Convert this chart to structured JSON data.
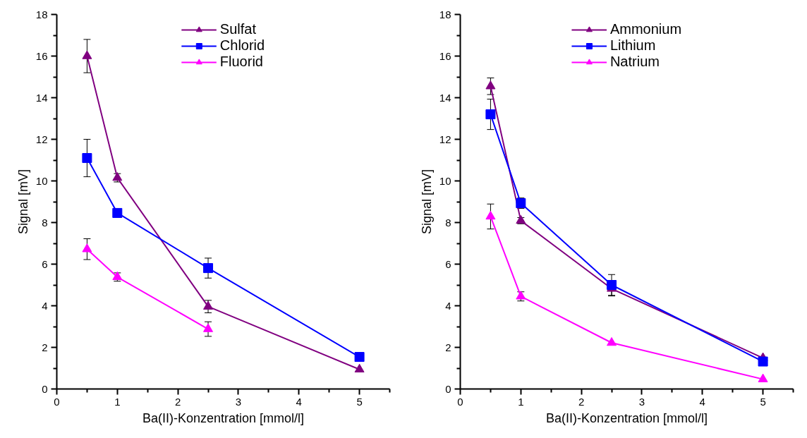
{
  "chart_data": [
    {
      "type": "line",
      "xlabel": "Ba(II)-Konzentration [mmol/l]",
      "ylabel": "Signal [mV]",
      "xlim": [
        0,
        5.5
      ],
      "ylim": [
        0,
        18
      ],
      "xticks": [
        0,
        {
          "value": 0.5,
          "label": null
        },
        1,
        {
          "value": 1.5,
          "label": null
        },
        2,
        {
          "value": 2.5,
          "label": null
        },
        3,
        {
          "value": 3.5,
          "label": null
        },
        4,
        {
          "value": 4.5,
          "label": null
        },
        5,
        {
          "value": 5.5,
          "label": null
        }
      ],
      "yticks": [
        0,
        {
          "value": 1,
          "label": null
        },
        2,
        {
          "value": 3,
          "label": null
        },
        4,
        {
          "value": 5,
          "label": null
        },
        6,
        {
          "value": 7,
          "label": null
        },
        8,
        {
          "value": 9,
          "label": null
        },
        10,
        {
          "value": 11,
          "label": null
        },
        12,
        {
          "value": 13,
          "label": null
        },
        14,
        {
          "value": 15,
          "label": null
        },
        16,
        {
          "value": 17,
          "label": null
        },
        18
      ],
      "grid": false,
      "legend": "top",
      "line_style": "solid",
      "series": [
        {
          "name": "Sulfat",
          "color": "#800080",
          "marker": "triangle",
          "x": [
            0.5,
            1,
            2.5,
            5
          ],
          "values": [
            16.0,
            10.15,
            3.96,
            0.94
          ],
          "errors": [
            0.8,
            0.2,
            0.3,
            null
          ]
        },
        {
          "name": "Chlorid",
          "color": "#0000ff",
          "marker": "square",
          "x": [
            0.5,
            1,
            2.5,
            5
          ],
          "values": [
            11.1,
            8.46,
            5.81,
            1.54
          ],
          "errors": [
            0.9,
            null,
            0.48,
            null
          ]
        },
        {
          "name": "Fluorid",
          "color": "#ff00ff",
          "marker": "triangle",
          "x": [
            0.5,
            1,
            2.5
          ],
          "values": [
            6.72,
            5.38,
            2.88
          ],
          "errors": [
            0.5,
            0.2,
            0.35
          ]
        }
      ]
    },
    {
      "type": "line",
      "xlabel": "Ba(II)-Konzentration [mmol/l]",
      "ylabel": "Signal [mV]",
      "xlim": [
        0,
        5.5
      ],
      "ylim": [
        0,
        18
      ],
      "xticks": [
        0,
        {
          "value": 0.5,
          "label": null
        },
        1,
        {
          "value": 1.5,
          "label": null
        },
        2,
        {
          "value": 2.5,
          "label": null
        },
        3,
        {
          "value": 3.5,
          "label": null
        },
        4,
        {
          "value": 4.5,
          "label": null
        },
        5,
        {
          "value": 5.5,
          "label": null
        }
      ],
      "yticks": [
        0,
        {
          "value": 1,
          "label": null
        },
        2,
        {
          "value": 3,
          "label": null
        },
        4,
        {
          "value": 5,
          "label": null
        },
        6,
        {
          "value": 7,
          "label": null
        },
        8,
        {
          "value": 9,
          "label": null
        },
        10,
        {
          "value": 11,
          "label": null
        },
        12,
        {
          "value": 13,
          "label": null
        },
        14,
        {
          "value": 15,
          "label": null
        },
        16,
        {
          "value": 17,
          "label": null
        },
        18
      ],
      "grid": false,
      "legend": "top",
      "line_style": "solid",
      "series": [
        {
          "name": "Ammonium",
          "color": "#800080",
          "marker": "triangle",
          "x": [
            0.5,
            1,
            2.5,
            5
          ],
          "values": [
            14.55,
            8.09,
            4.82,
            1.49
          ],
          "errors": [
            0.4,
            0.15,
            0.35,
            null
          ]
        },
        {
          "name": "Lithium",
          "color": "#0000ff",
          "marker": "square",
          "x": [
            0.5,
            1,
            2.5,
            5
          ],
          "values": [
            13.2,
            8.93,
            5.0,
            1.32
          ],
          "errors": [
            0.73,
            0.25,
            0.5,
            null
          ]
        },
        {
          "name": "Natrium",
          "color": "#ff00ff",
          "marker": "triangle",
          "x": [
            0.5,
            1,
            2.5,
            5
          ],
          "values": [
            8.29,
            4.45,
            2.22,
            0.47
          ],
          "errors": [
            0.6,
            0.22,
            null,
            null
          ]
        }
      ]
    }
  ]
}
